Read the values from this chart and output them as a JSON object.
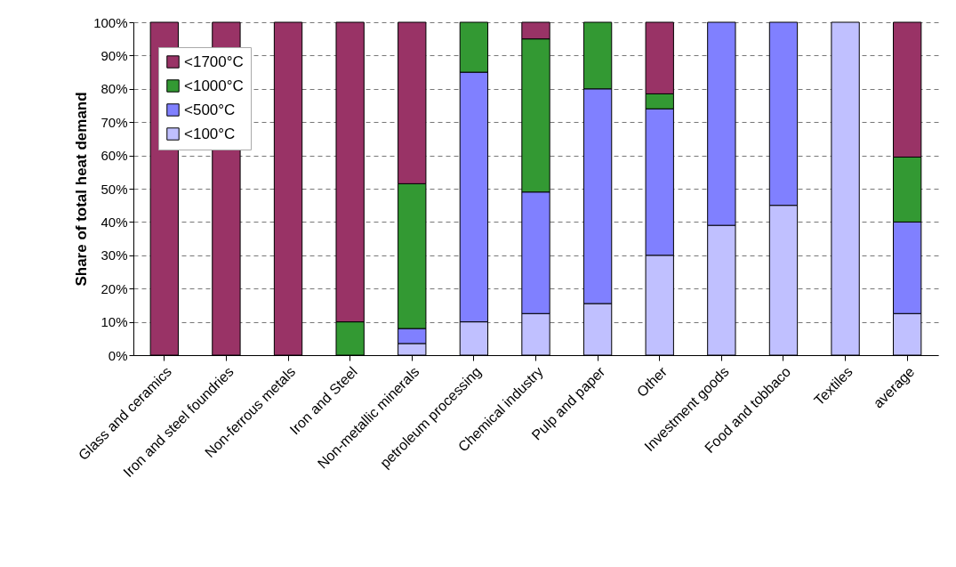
{
  "chart_data": {
    "type": "bar",
    "stacked": true,
    "ylabel": "Share of total heat demand",
    "categories": [
      "Glass and ceramics",
      "Iron and steel foundries",
      "Non-ferrous metals",
      "Iron and Steel",
      "Non-metallic minerals",
      "petroleum processing",
      "Chemical industry",
      "Pulp and paper",
      "Other",
      "Investment goods",
      "Food and tobbaco",
      "Textiles",
      "average"
    ],
    "series": [
      {
        "name": "<100°C",
        "color": "#c0c0ff",
        "values": [
          0,
          0,
          0,
          0,
          3.5,
          10,
          12.5,
          15.5,
          30,
          39,
          45,
          100,
          12.5
        ]
      },
      {
        "name": "<500°C",
        "color": "#8080ff",
        "values": [
          0,
          0,
          0,
          0,
          4.5,
          75,
          36.5,
          64.5,
          44,
          61,
          55,
          0,
          27.5
        ]
      },
      {
        "name": "<1000°C",
        "color": "#339933",
        "values": [
          0,
          0,
          0,
          10,
          43.5,
          15,
          46,
          20,
          4.5,
          0,
          0,
          0,
          19.5
        ]
      },
      {
        "name": "<1700°C",
        "color": "#993366",
        "values": [
          100,
          100,
          100,
          90,
          48.5,
          0,
          5,
          0,
          21.5,
          0,
          0,
          0,
          40.5
        ]
      }
    ],
    "ylim": [
      0,
      100
    ],
    "yticks": [
      {
        "value": 0,
        "label": "0%"
      },
      {
        "value": 10,
        "label": "10%"
      },
      {
        "value": 20,
        "label": "20%"
      },
      {
        "value": 30,
        "label": "30%"
      },
      {
        "value": 40,
        "label": "40%"
      },
      {
        "value": 50,
        "label": "50%"
      },
      {
        "value": 60,
        "label": "60%"
      },
      {
        "value": 70,
        "label": "70%"
      },
      {
        "value": 80,
        "label": "80%"
      },
      {
        "value": 90,
        "label": "90%"
      },
      {
        "value": 100,
        "label": "100%"
      }
    ],
    "grid": "y",
    "legend": "top left"
  }
}
